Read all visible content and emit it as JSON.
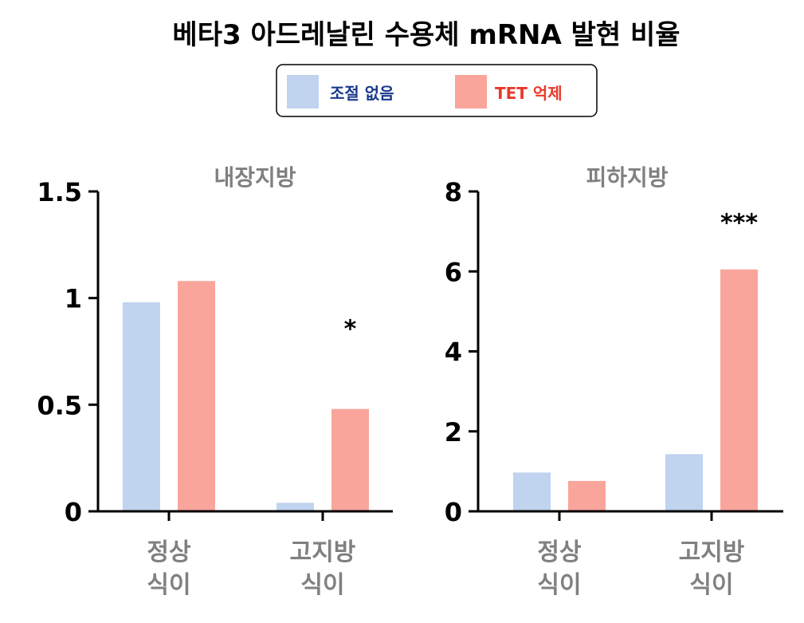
{
  "title": "베타3 아드레날린 수용체 mRNA 발현 비율",
  "legend": [
    {
      "label": "조절 없음",
      "color": "#c0d3ef",
      "text_color": "#1a3a8c"
    },
    {
      "label": "TET 억제",
      "color": "#f9a59c",
      "text_color": "#e8392b"
    }
  ],
  "chart_data": [
    {
      "type": "bar",
      "title": "내장지방",
      "categories": [
        [
          "정상",
          "식이"
        ],
        [
          "고지방",
          "식이"
        ]
      ],
      "series": [
        {
          "name": "조절 없음",
          "values": [
            0.98,
            0.04
          ]
        },
        {
          "name": "TET 억제",
          "values": [
            1.08,
            0.48
          ]
        }
      ],
      "ylim": [
        0,
        1.5
      ],
      "yticks": [
        0,
        0.5,
        1,
        1.5
      ],
      "ytick_labels": [
        "0",
        "0.5",
        "1",
        "1.5"
      ],
      "annotations": [
        {
          "category_index": 1,
          "series_index": 1,
          "text": "*"
        }
      ]
    },
    {
      "type": "bar",
      "title": "피하지방",
      "categories": [
        [
          "정상",
          "식이"
        ],
        [
          "고지방",
          "식이"
        ]
      ],
      "series": [
        {
          "name": "조절 없음",
          "values": [
            0.97,
            1.43
          ]
        },
        {
          "name": "TET 억제",
          "values": [
            0.76,
            6.05
          ]
        }
      ],
      "ylim": [
        0,
        8
      ],
      "yticks": [
        0,
        2,
        4,
        6,
        8
      ],
      "ytick_labels": [
        "0",
        "2",
        "4",
        "6",
        "8"
      ],
      "annotations": [
        {
          "category_index": 1,
          "series_index": 1,
          "text": "***"
        }
      ]
    }
  ]
}
